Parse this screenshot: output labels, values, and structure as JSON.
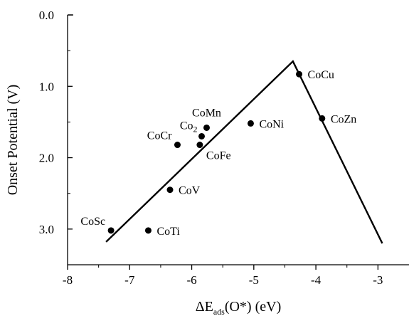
{
  "chart_data": {
    "type": "scatter",
    "xlabel": "ΔE_ads(O*) (eV)",
    "xlabel_parts": {
      "main": "ΔE",
      "sub": "ads",
      "rest": "(O*) (eV)"
    },
    "ylabel": "Onset Potential (V)",
    "xlim": [
      -8,
      -2.5
    ],
    "ylim": [
      0,
      3.5
    ],
    "y_inverted": true,
    "grid": false,
    "legend": "none",
    "x_ticks": [
      {
        "value": -8,
        "label": "-8"
      },
      {
        "value": -7,
        "label": "-7"
      },
      {
        "value": -6,
        "label": "-6"
      },
      {
        "value": -5,
        "label": "-5"
      },
      {
        "value": -4,
        "label": "-4"
      },
      {
        "value": -3,
        "label": "-3"
      }
    ],
    "y_ticks": [
      {
        "value": 0,
        "label": "0.0"
      },
      {
        "value": 1,
        "label": "1.0"
      },
      {
        "value": 2,
        "label": "2.0"
      },
      {
        "value": 3,
        "label": "3.0"
      }
    ],
    "points": [
      {
        "label": "CoSc",
        "x": -7.3,
        "y": 3.02,
        "anchor": "left"
      },
      {
        "label": "CoTi",
        "x": -6.7,
        "y": 3.02,
        "anchor": "right"
      },
      {
        "label": "CoV",
        "x": -6.35,
        "y": 2.45,
        "anchor": "right"
      },
      {
        "label": "CoCr",
        "x": -6.23,
        "y": 1.82,
        "anchor": "left"
      },
      {
        "label": "CoFe",
        "x": -5.87,
        "y": 1.82,
        "anchor": "right-below"
      },
      {
        "label": "Co",
        "sub": "2",
        "x": -5.84,
        "y": 1.7,
        "anchor": "left-above"
      },
      {
        "label": "CoMn",
        "x": -5.76,
        "y": 1.58,
        "anchor": "above"
      },
      {
        "label": "CoNi",
        "x": -5.05,
        "y": 1.52,
        "anchor": "right"
      },
      {
        "label": "CoCu",
        "x": -4.27,
        "y": 0.83,
        "anchor": "right"
      },
      {
        "label": "CoZn",
        "x": -3.9,
        "y": 1.45,
        "anchor": "right"
      }
    ],
    "volcano_line": [
      {
        "x": -7.38,
        "y": 3.18
      },
      {
        "x": -4.37,
        "y": 0.65
      },
      {
        "x": -2.93,
        "y": 3.2
      }
    ],
    "colors": {
      "marker": "#000000",
      "line": "#000000",
      "axis": "#000000"
    }
  }
}
